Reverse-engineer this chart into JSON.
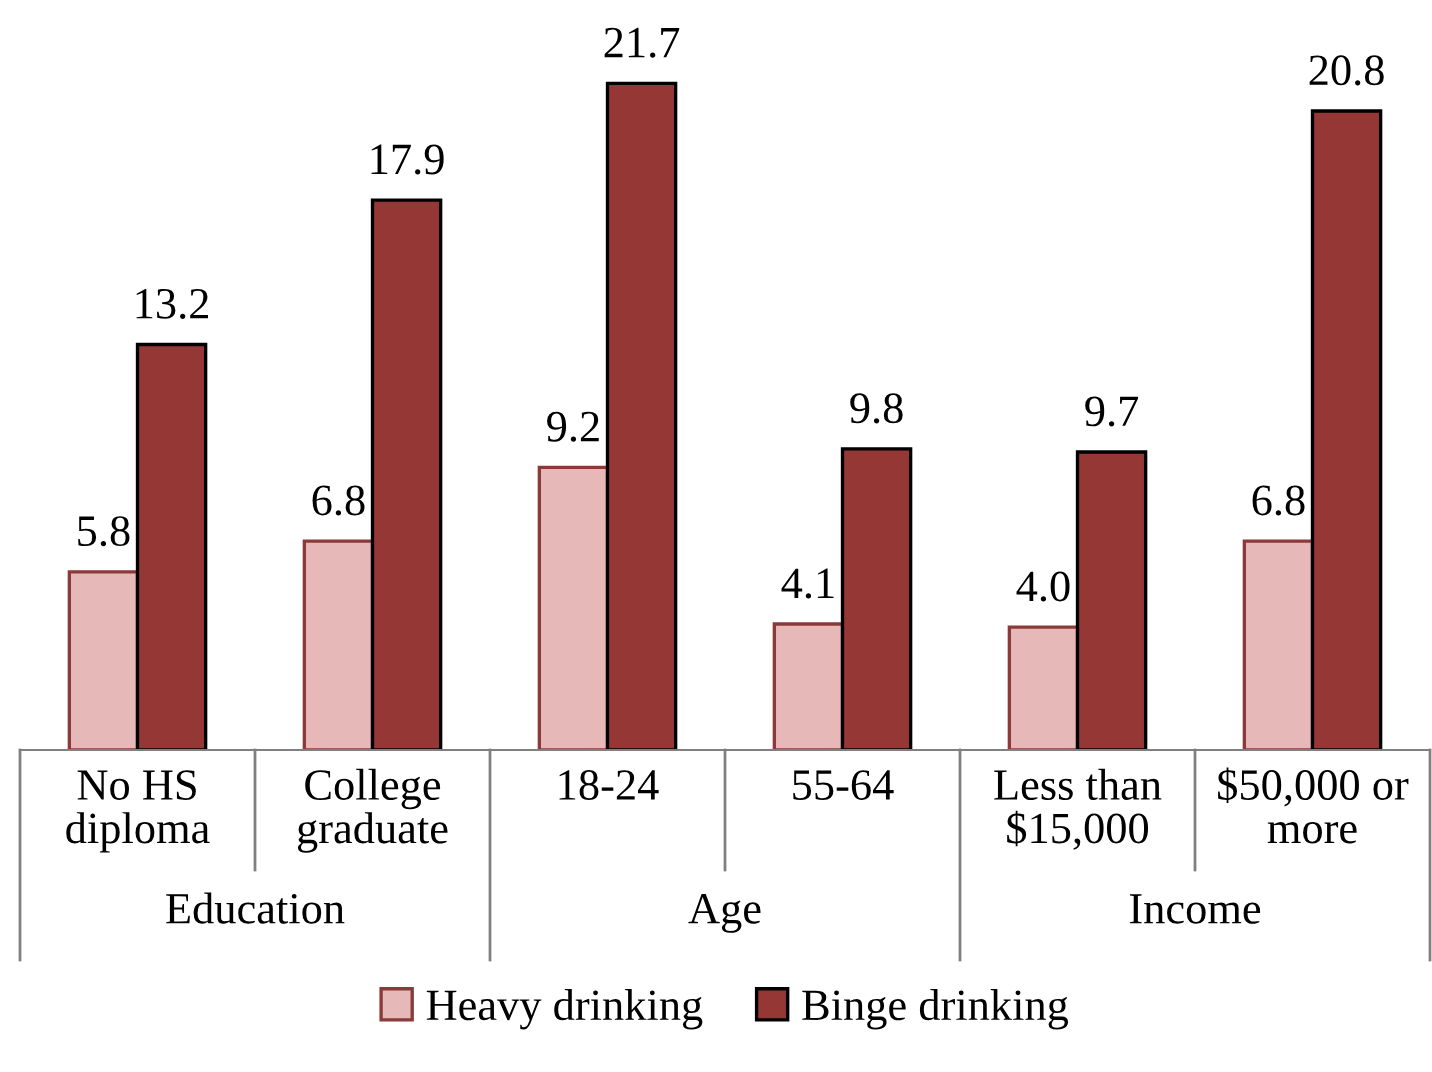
{
  "chart_data": {
    "type": "bar",
    "categories": [
      "No HS\ndiploma",
      "College\ngraduate",
      "18-24",
      "55-64",
      "Less than\n$15,000",
      "$50,000 or\nmore"
    ],
    "annotations": [
      "Education",
      "Age",
      "Income"
    ],
    "series": [
      {
        "name": "Heavy drinking",
        "color": "#e6b9b8",
        "values": [
          5.8,
          6.8,
          9.2,
          4.1,
          4.0,
          6.8
        ],
        "value_labels": [
          "5.8",
          "6.8",
          "9.2",
          "4.1",
          "4.0",
          "6.8"
        ]
      },
      {
        "name": "Binge drinking",
        "color": "#953735",
        "values": [
          13.2,
          17.9,
          21.7,
          9.8,
          9.7,
          20.8
        ],
        "value_labels": [
          "13.2",
          "17.9",
          "21.7",
          "9.8",
          "9.7",
          "20.8"
        ]
      }
    ],
    "legend": "bottom"
  }
}
